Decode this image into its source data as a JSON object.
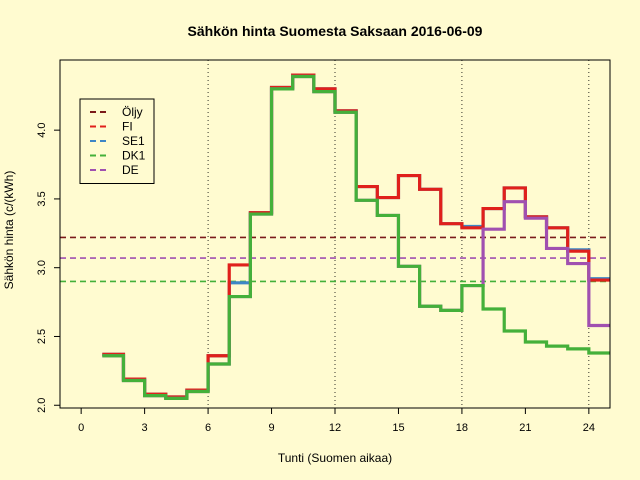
{
  "chart_data": {
    "type": "line",
    "title": "Sähkön hinta Suomesta Saksaan 2016-06-09",
    "xlabel": "Tunti (Suomen aikaa)",
    "ylabel": "Sähkön hinta (c/(kWh)",
    "xlim": [
      -1,
      25
    ],
    "ylim": [
      1.98,
      4.51
    ],
    "x_ticks": [
      0,
      3,
      6,
      9,
      12,
      15,
      18,
      21,
      24
    ],
    "y_ticks": [
      2.0,
      2.5,
      3.0,
      3.5,
      4.0
    ],
    "y_tick_labels": [
      "2.0",
      "2.5",
      "3.0",
      "3.5",
      "4.0"
    ],
    "vertical_lines": [
      6,
      12,
      18,
      24
    ],
    "legend_position": "top-left",
    "legend": [
      {
        "name": "Öljy",
        "color": "#7b1a1a"
      },
      {
        "name": "FI",
        "color": "#e0201b"
      },
      {
        "name": "SE1",
        "color": "#3d86c6"
      },
      {
        "name": "DK1",
        "color": "#44b03a"
      },
      {
        "name": "DE",
        "color": "#a050b0"
      }
    ],
    "hlines": [
      {
        "name": "Öljy",
        "value": 3.22,
        "color": "#7b1a1a"
      },
      {
        "name": "DE",
        "value": 3.07,
        "color": "#a050b0"
      },
      {
        "name": "DK1",
        "value": 2.9,
        "color": "#44b03a"
      }
    ],
    "x": [
      1,
      2,
      3,
      4,
      5,
      6,
      7,
      8,
      9,
      10,
      11,
      12,
      13,
      14,
      15,
      16,
      17,
      18,
      19,
      20,
      21,
      22,
      23,
      24,
      25
    ],
    "series": [
      {
        "name": "SE1",
        "color": "#3d86c6",
        "values": [
          2.37,
          2.19,
          2.08,
          2.06,
          2.11,
          2.36,
          2.89,
          3.4,
          4.31,
          4.4,
          4.3,
          4.14,
          3.59,
          3.51,
          3.67,
          3.57,
          3.32,
          3.3,
          3.43,
          3.58,
          3.37,
          3.29,
          3.13,
          2.92,
          2.92
        ]
      },
      {
        "name": "FI",
        "color": "#e0201b",
        "values": [
          2.37,
          2.19,
          2.08,
          2.06,
          2.11,
          2.36,
          3.02,
          3.4,
          4.31,
          4.4,
          4.3,
          4.14,
          3.59,
          3.51,
          3.67,
          3.57,
          3.32,
          3.29,
          3.43,
          3.58,
          3.37,
          3.29,
          3.12,
          2.91,
          2.91
        ]
      },
      {
        "name": "DE",
        "color": "#a050b0",
        "values": [
          2.36,
          2.18,
          2.07,
          2.05,
          2.1,
          2.3,
          2.79,
          3.39,
          4.3,
          4.39,
          4.28,
          4.13,
          3.49,
          3.38,
          3.01,
          2.72,
          2.69,
          2.87,
          3.28,
          3.48,
          3.36,
          3.14,
          3.03,
          2.58,
          2.58
        ]
      },
      {
        "name": "DK1",
        "color": "#44b03a",
        "values": [
          2.36,
          2.18,
          2.07,
          2.05,
          2.1,
          2.3,
          2.79,
          3.39,
          4.3,
          4.39,
          4.28,
          4.13,
          3.49,
          3.38,
          3.01,
          2.72,
          2.69,
          2.87,
          2.7,
          2.54,
          2.46,
          2.43,
          2.41,
          2.38,
          2.38
        ]
      }
    ]
  }
}
